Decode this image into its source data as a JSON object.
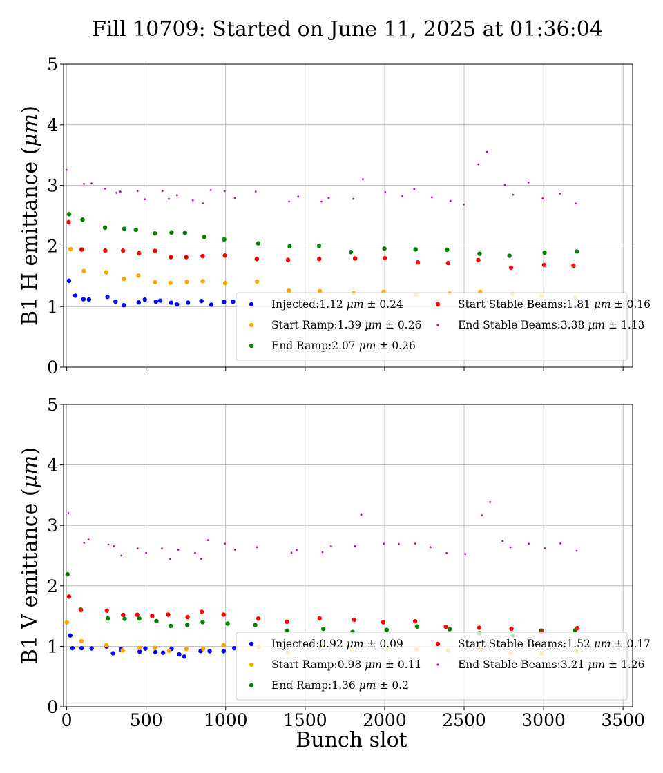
{
  "figure": {
    "title": "Fill 10709: Started on June 11, 2025 at 01:36:04"
  },
  "chart_data": [
    {
      "type": "scatter",
      "ylabel": "B1 H emittance (μm)",
      "xlabel": "",
      "xlim": [
        -20,
        3560
      ],
      "ylim": [
        0,
        5
      ],
      "xticks": [
        0,
        500,
        1000,
        1500,
        2000,
        2500,
        3000,
        3500
      ],
      "yticks": [
        0,
        1,
        2,
        3,
        4,
        5
      ],
      "grid": true,
      "legend_position": "lower-right",
      "series": [
        {
          "name": "Injected",
          "legend": "Injected:1.12 μm ± 0.24",
          "color": "#0000ff",
          "x": [
            10,
            50,
            100,
            150,
            250,
            300,
            350,
            450,
            500,
            550,
            600,
            650,
            700,
            750,
            850,
            900,
            1000,
            1050
          ],
          "y": [
            1.45,
            1.12,
            1.1,
            1.07,
            1.12,
            1.1,
            1.06,
            1.1,
            1.08,
            1.04,
            1.1,
            1.08,
            1.05,
            1.02,
            1.1,
            1.07,
            1.1,
            1.08
          ]
        },
        {
          "name": "Start Ramp",
          "legend": "Start Ramp:1.39 μm ± 0.26",
          "color": "#ffa500",
          "x": [
            10,
            100,
            250,
            350,
            450,
            550,
            650,
            750,
            850,
            1000,
            1200,
            1400,
            1600,
            1800,
            2000,
            2200,
            2400,
            2600,
            2800,
            3000,
            3200
          ],
          "y": [
            1.95,
            1.62,
            1.52,
            1.48,
            1.47,
            1.45,
            1.44,
            1.42,
            1.45,
            1.4,
            1.36,
            1.32,
            1.3,
            1.28,
            1.27,
            1.23,
            1.22,
            1.2,
            1.18,
            1.17,
            1.15
          ]
        },
        {
          "name": "End Ramp",
          "legend": "End Ramp:2.07 μm ± 0.26",
          "color": "#008000",
          "x": [
            10,
            100,
            250,
            350,
            450,
            550,
            650,
            750,
            850,
            1000,
            1200,
            1400,
            1600,
            1800,
            2000,
            2200,
            2400,
            2600,
            2800,
            3000,
            3200
          ],
          "y": [
            2.55,
            2.38,
            2.3,
            2.27,
            2.25,
            2.22,
            2.2,
            2.18,
            2.15,
            2.1,
            2.0,
            1.97,
            1.95,
            1.93,
            1.92,
            1.9,
            1.9,
            1.88,
            1.86,
            1.85,
            1.85
          ]
        },
        {
          "name": "Start Stable Beams",
          "legend": "Start Stable Beams:1.81 μm ± 0.16",
          "color": "#ff0000",
          "x": [
            10,
            100,
            250,
            350,
            450,
            550,
            650,
            750,
            850,
            1000,
            1200,
            1400,
            1600,
            1800,
            2000,
            2200,
            2400,
            2600,
            2800,
            3000,
            3200
          ],
          "y": [
            2.35,
            2.0,
            1.92,
            1.9,
            1.88,
            1.87,
            1.86,
            1.85,
            1.84,
            1.82,
            1.8,
            1.79,
            1.78,
            1.77,
            1.76,
            1.75,
            1.72,
            1.72,
            1.7,
            1.7,
            1.72
          ]
        },
        {
          "name": "End Stable Beams",
          "legend": "End Stable Beams:3.38 μm ± 1.13",
          "color": "#bf00bf",
          "x": [
            10,
            100,
            150,
            250,
            300,
            350,
            450,
            500,
            600,
            650,
            700,
            800,
            850,
            900,
            1000,
            1050,
            1200,
            1400,
            1450,
            1600,
            1650,
            1800,
            1850,
            2000,
            2100,
            2200,
            2300,
            2400,
            2500,
            2600,
            2650,
            2750,
            2800,
            2900,
            3000,
            3100,
            3200
          ],
          "y": [
            3.3,
            3.0,
            3.05,
            2.95,
            2.9,
            2.85,
            2.85,
            2.8,
            2.85,
            2.75,
            2.8,
            2.75,
            2.7,
            2.9,
            2.95,
            2.85,
            2.9,
            2.75,
            2.8,
            2.75,
            2.8,
            2.8,
            3.05,
            2.9,
            2.85,
            2.95,
            2.75,
            2.8,
            2.7,
            3.3,
            3.5,
            2.95,
            2.85,
            3.0,
            2.75,
            2.85,
            2.75
          ]
        }
      ]
    },
    {
      "type": "scatter",
      "ylabel": "B1 V emittance (μm)",
      "xlabel": "Bunch slot",
      "xlim": [
        -20,
        3560
      ],
      "ylim": [
        0,
        5
      ],
      "xticks": [
        0,
        500,
        1000,
        1500,
        2000,
        2500,
        3000,
        3500
      ],
      "yticks": [
        0,
        1,
        2,
        3,
        4,
        5
      ],
      "grid": true,
      "legend_position": "lower-right",
      "series": [
        {
          "name": "Injected",
          "legend": "Injected:0.92 μm ± 0.09",
          "color": "#0000ff",
          "x": [
            10,
            50,
            100,
            150,
            250,
            300,
            350,
            450,
            500,
            550,
            600,
            650,
            700,
            750,
            850,
            900,
            1000,
            1050
          ],
          "y": [
            1.15,
            0.95,
            0.93,
            0.91,
            0.95,
            0.93,
            0.9,
            0.94,
            0.92,
            0.88,
            0.93,
            0.92,
            0.9,
            0.88,
            0.94,
            0.92,
            0.94,
            0.92
          ]
        },
        {
          "name": "Start Ramp",
          "legend": "Start Ramp:0.98 μm ± 0.11",
          "color": "#ffa500",
          "x": [
            10,
            100,
            250,
            350,
            450,
            550,
            650,
            750,
            850,
            1000,
            1200,
            1400,
            1600,
            1800,
            2000,
            2200,
            2400,
            2600,
            2800,
            3000,
            3200
          ],
          "y": [
            1.45,
            1.05,
            1.0,
            0.98,
            0.98,
            0.96,
            0.97,
            0.95,
            0.97,
            0.96,
            0.95,
            0.94,
            0.95,
            0.94,
            0.94,
            0.93,
            0.93,
            0.92,
            0.92,
            0.92,
            0.92
          ]
        },
        {
          "name": "End Ramp",
          "legend": "End Ramp:1.36 μm ± 0.2",
          "color": "#008000",
          "x": [
            10,
            100,
            250,
            350,
            450,
            550,
            650,
            750,
            850,
            1000,
            1200,
            1400,
            1600,
            1800,
            2000,
            2200,
            2400,
            2600,
            2800,
            3000,
            3200
          ],
          "y": [
            2.25,
            1.55,
            1.45,
            1.42,
            1.42,
            1.4,
            1.38,
            1.37,
            1.4,
            1.38,
            1.33,
            1.3,
            1.3,
            1.29,
            1.28,
            1.27,
            1.25,
            1.25,
            1.23,
            1.22,
            1.22
          ]
        },
        {
          "name": "Start Stable Beams",
          "legend": "Start Stable Beams:1.52 μm ± 0.17",
          "color": "#ff0000",
          "x": [
            10,
            100,
            250,
            350,
            450,
            550,
            650,
            750,
            850,
            1000,
            1200,
            1400,
            1600,
            1800,
            2000,
            2200,
            2400,
            2600,
            2800,
            3000,
            3200
          ],
          "y": [
            1.85,
            1.65,
            1.58,
            1.57,
            1.55,
            1.54,
            1.55,
            1.53,
            1.52,
            1.5,
            1.47,
            1.45,
            1.44,
            1.42,
            1.4,
            1.38,
            1.35,
            1.32,
            1.3,
            1.29,
            1.35
          ]
        },
        {
          "name": "End Stable Beams",
          "legend": "End Stable Beams:3.21 μm ± 1.26",
          "color": "#bf00bf",
          "x": [
            10,
            100,
            150,
            250,
            300,
            350,
            450,
            500,
            600,
            650,
            700,
            800,
            850,
            900,
            1000,
            1050,
            1200,
            1400,
            1450,
            1600,
            1650,
            1800,
            1850,
            2000,
            2100,
            2200,
            2300,
            2400,
            2500,
            2600,
            2650,
            2750,
            2800,
            2900,
            3000,
            3100,
            3200
          ],
          "y": [
            3.15,
            2.75,
            2.8,
            2.65,
            2.6,
            2.55,
            2.6,
            2.55,
            2.6,
            2.5,
            2.55,
            2.5,
            2.45,
            2.75,
            2.7,
            2.6,
            2.6,
            2.55,
            2.6,
            2.55,
            2.6,
            2.7,
            3.15,
            2.7,
            2.65,
            2.75,
            2.6,
            2.6,
            2.55,
            3.2,
            3.4,
            2.75,
            2.65,
            2.7,
            2.6,
            2.65,
            2.6
          ]
        }
      ]
    }
  ]
}
